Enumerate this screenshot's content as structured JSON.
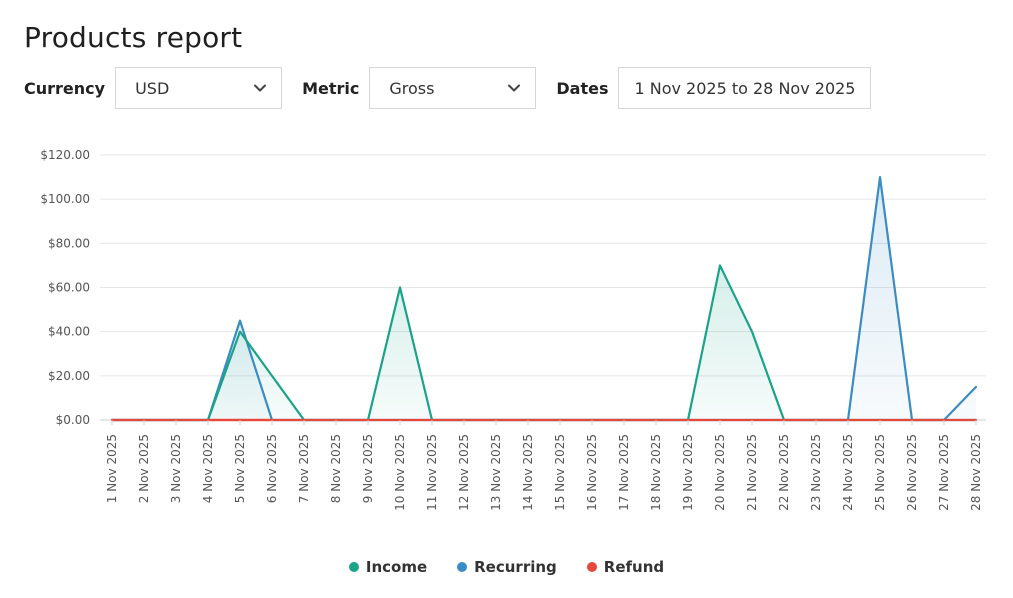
{
  "page": {
    "title": "Products report"
  },
  "filters": {
    "currency": {
      "label": "Currency",
      "value": "USD"
    },
    "metric": {
      "label": "Metric",
      "value": "Gross"
    },
    "dates": {
      "label": "Dates",
      "value": "1 Nov 2025 to 28 Nov 2025"
    }
  },
  "colors": {
    "income": "#1aa388",
    "recurring": "#3a8cc4",
    "refund": "#e8473c",
    "grid": "#e6e6e6"
  },
  "chart_data": {
    "type": "area",
    "title": "",
    "xlabel": "",
    "ylabel": "",
    "ylim": [
      0,
      120
    ],
    "yticks": [
      0,
      20,
      40,
      60,
      80,
      100,
      120
    ],
    "ytick_labels": [
      "$0.00",
      "$20.00",
      "$40.00",
      "$60.00",
      "$80.00",
      "$100.00",
      "$120.00"
    ],
    "grid": true,
    "legend_position": "bottom-center",
    "categories": [
      "1 Nov 2025",
      "2 Nov 2025",
      "3 Nov 2025",
      "4 Nov 2025",
      "5 Nov 2025",
      "6 Nov 2025",
      "7 Nov 2025",
      "8 Nov 2025",
      "9 Nov 2025",
      "10 Nov 2025",
      "11 Nov 2025",
      "12 Nov 2025",
      "13 Nov 2025",
      "14 Nov 2025",
      "15 Nov 2025",
      "16 Nov 2025",
      "17 Nov 2025",
      "18 Nov 2025",
      "19 Nov 2025",
      "20 Nov 2025",
      "21 Nov 2025",
      "22 Nov 2025",
      "23 Nov 2025",
      "24 Nov 2025",
      "25 Nov 2025",
      "26 Nov 2025",
      "27 Nov 2025",
      "28 Nov 2025"
    ],
    "series": [
      {
        "name": "Income",
        "key": "income",
        "values": [
          0,
          0,
          0,
          0,
          40,
          20,
          0,
          0,
          0,
          60,
          0,
          0,
          0,
          0,
          0,
          0,
          0,
          0,
          0,
          70,
          40,
          0,
          0,
          0,
          0,
          0,
          0,
          0
        ]
      },
      {
        "name": "Recurring",
        "key": "recurring",
        "values": [
          0,
          0,
          0,
          0,
          45,
          0,
          0,
          0,
          0,
          0,
          0,
          0,
          0,
          0,
          0,
          0,
          0,
          0,
          0,
          0,
          0,
          0,
          0,
          0,
          110,
          0,
          0,
          15
        ]
      },
      {
        "name": "Refund",
        "key": "refund",
        "values": [
          0,
          0,
          0,
          0,
          0,
          0,
          0,
          0,
          0,
          0,
          0,
          0,
          0,
          0,
          0,
          0,
          0,
          0,
          0,
          0,
          0,
          0,
          0,
          0,
          0,
          0,
          0,
          0
        ]
      }
    ]
  }
}
